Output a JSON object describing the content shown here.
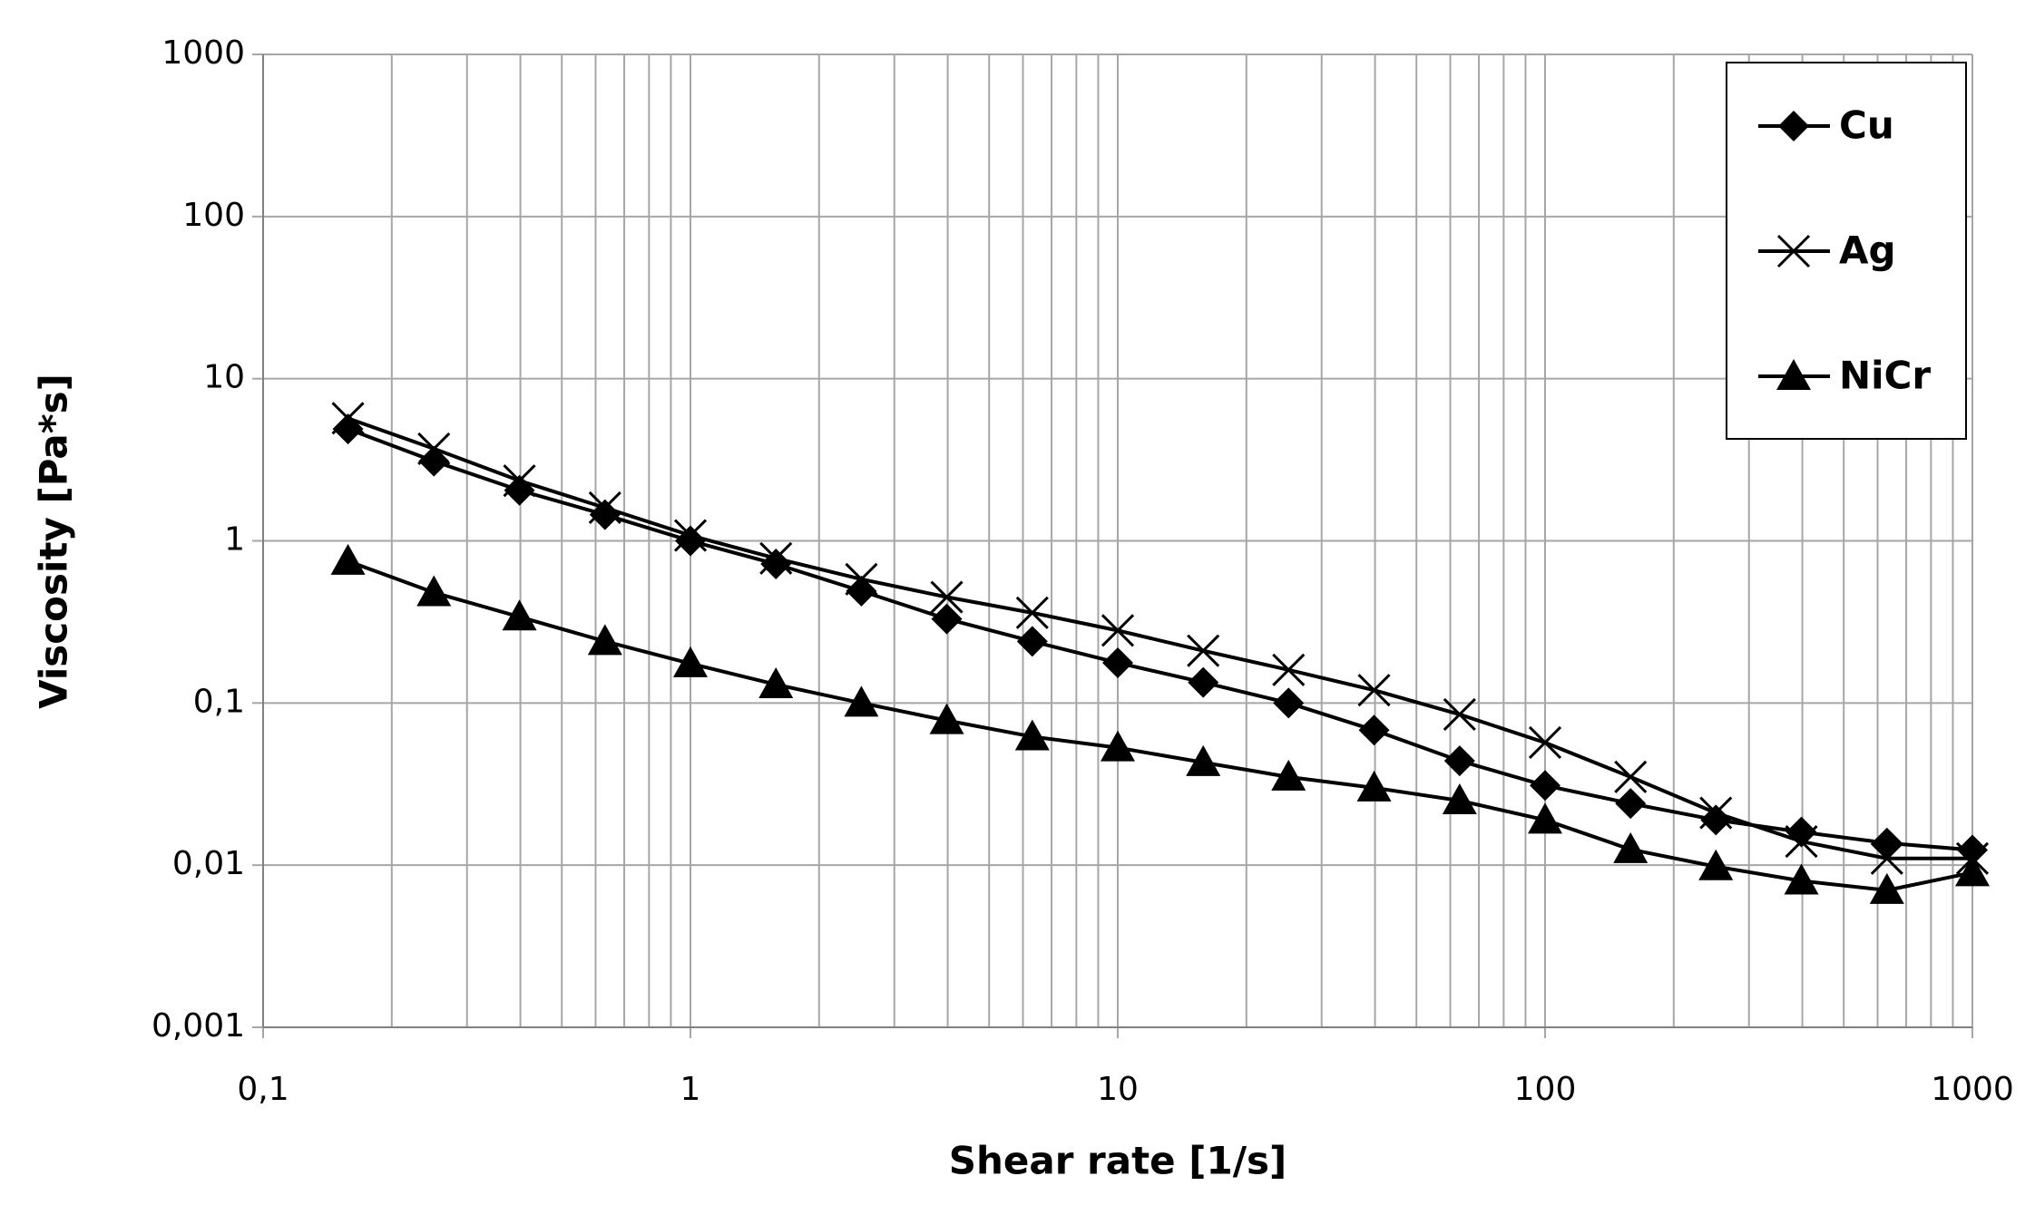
{
  "chart_data": {
    "type": "line",
    "xlabel": "Shear rate [1/s]",
    "ylabel": "Viscosity [Pa*s]",
    "x": [
      0.158,
      0.251,
      0.398,
      0.631,
      1,
      1.585,
      2.512,
      3.98,
      6.31,
      10,
      15.85,
      25.1,
      39.8,
      63.1,
      100,
      158.5,
      251,
      398,
      631,
      1000
    ],
    "series": [
      {
        "name": "Cu",
        "color": "#000000",
        "marker": "diamond",
        "values": [
          4.9,
          3.1,
          2.05,
          1.45,
          1.0,
          0.72,
          0.49,
          0.33,
          0.24,
          0.177,
          0.134,
          0.1,
          0.068,
          0.044,
          0.031,
          0.024,
          0.019,
          0.016,
          0.0137,
          0.0124
        ]
      },
      {
        "name": "Ag",
        "color": "#000000",
        "marker": "cross",
        "values": [
          5.7,
          3.7,
          2.35,
          1.6,
          1.08,
          0.78,
          0.58,
          0.45,
          0.36,
          0.28,
          0.21,
          0.16,
          0.12,
          0.085,
          0.057,
          0.035,
          0.021,
          0.014,
          0.011,
          0.011
        ]
      },
      {
        "name": "NiCr",
        "color": "#000000",
        "marker": "triangle",
        "values": [
          0.75,
          0.48,
          0.34,
          0.24,
          0.175,
          0.13,
          0.1,
          0.078,
          0.062,
          0.053,
          0.043,
          0.035,
          0.03,
          0.025,
          0.019,
          0.0125,
          0.0098,
          0.008,
          0.007,
          0.009
        ]
      }
    ],
    "xscale": "log",
    "yscale": "log",
    "xlim": [
      0.1,
      1000
    ],
    "ylim": [
      0.001,
      1000
    ],
    "xticks": [
      {
        "value": 0.1,
        "label": "0,1"
      },
      1,
      10,
      100,
      1000
    ],
    "yticks": [
      {
        "value": 0.001,
        "label": "0,001"
      },
      {
        "value": 0.01,
        "label": "0,01"
      },
      {
        "value": 0.1,
        "label": "0,1"
      },
      1,
      10,
      100,
      1000
    ],
    "grid": true,
    "minor_grid_x": true,
    "legend": "upper right"
  }
}
